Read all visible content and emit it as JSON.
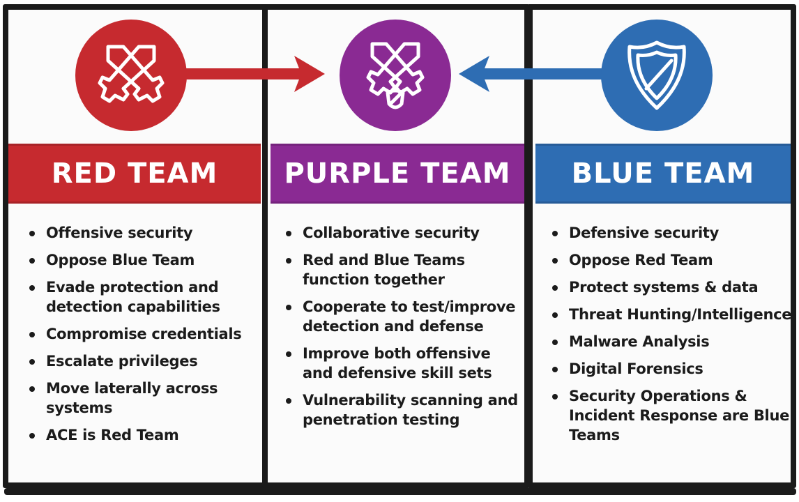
{
  "colors": {
    "red": "#c62a2f",
    "purple": "#8a2a93",
    "blue": "#2e6db3",
    "outline": "#1b1b1b"
  },
  "teams": {
    "red": {
      "title": "RED TEAM",
      "icon": "crossed-swords-icon",
      "items": [
        "Offensive security",
        "Oppose Blue Team",
        "Evade protection and detection capabilities",
        "Compromise credentials",
        "Escalate privileges",
        "Move laterally across systems",
        "ACE is Red Team"
      ]
    },
    "purple": {
      "title": "PURPLE TEAM",
      "icon": "crossed-swords-shield-icon",
      "items": [
        "Collaborative security",
        "Red and Blue Teams function together",
        "Cooperate to test/improve detection and defense",
        "Improve both offensive and defensive skill sets",
        "Vulnerability scanning and penetration testing"
      ]
    },
    "blue": {
      "title": "BLUE TEAM",
      "icon": "shield-icon",
      "items": [
        "Defensive security",
        "Oppose Red Team",
        "Protect systems & data",
        "Threat Hunting/Intelligence",
        "Malware Analysis",
        "Digital Forensics",
        "Security Operations & Incident Response are Blue Teams"
      ]
    }
  }
}
